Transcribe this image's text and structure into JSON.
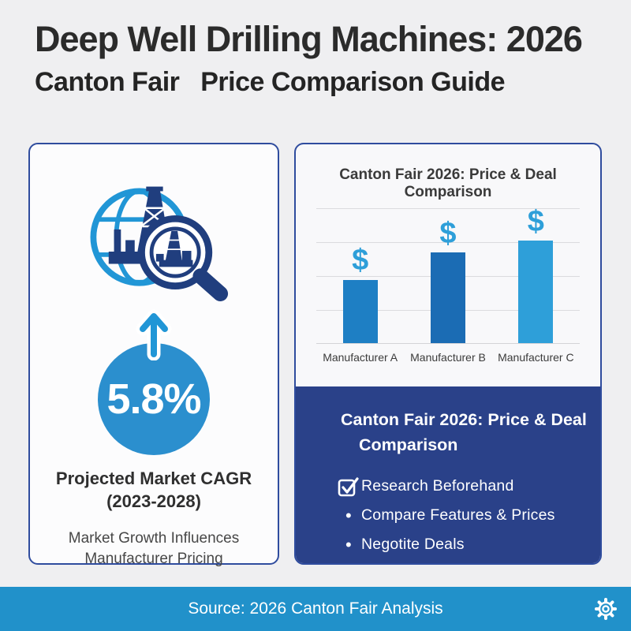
{
  "page": {
    "title": "Deep Well Drilling Machines: 2026",
    "subtitle": "Canton Fair   Price Comparison Guide"
  },
  "left_card": {
    "icon": "globe-with-drilling-rig-and-magnifier",
    "arrow_icon": "up-arrow",
    "stat_value": "5.8%",
    "caption_line1": "Projected Market CAGR",
    "caption_line2": "(2023-2028)",
    "subcaption_line1": "Market Growth Influences",
    "subcaption_line2": "Manufacturer Pricing"
  },
  "right_card": {
    "chart_title": "Canton Fair 2026: Price & Deal Comparison",
    "panel": {
      "heading_line1": "Canton Fair 2026: Price & Deal",
      "heading_line2": "Comparison",
      "items": [
        {
          "marker": "checkbox",
          "label": "Research Beforehand"
        },
        {
          "marker": "bullet",
          "label": "Compare Features & Prices"
        },
        {
          "marker": "bullet",
          "label": "Negotite Deals"
        }
      ]
    }
  },
  "chart_data": {
    "type": "bar",
    "title": "Canton Fair 2026: Price & Deal Comparison",
    "categories": [
      "Manufacturer A",
      "Manufacturer B",
      "Manufacturer C"
    ],
    "values_pct_of_plot_height": [
      47,
      67,
      81
    ],
    "bar_colors": [
      "#1e7fc4",
      "#1b6cb4",
      "#2e9fd9"
    ],
    "bar_annotations": [
      "$",
      "$",
      "$"
    ],
    "annotation_color": "#2e9fd9",
    "xlabel": "",
    "ylabel": "",
    "y_axis_labels_shown": false,
    "gridline_count": 5,
    "legend": "none"
  },
  "footer": {
    "source_text": "Source: 2026 Canton Fair Analysis",
    "gear_icon": "settings-gear"
  },
  "colors": {
    "accent_light_blue": "#2196d6",
    "stat_circle_blue": "#2b8fce",
    "panel_navy": "#2a4189",
    "footer_blue": "#2191ca",
    "card_border_navy": "#2f4c9e",
    "icon_navy": "#203e7e"
  }
}
